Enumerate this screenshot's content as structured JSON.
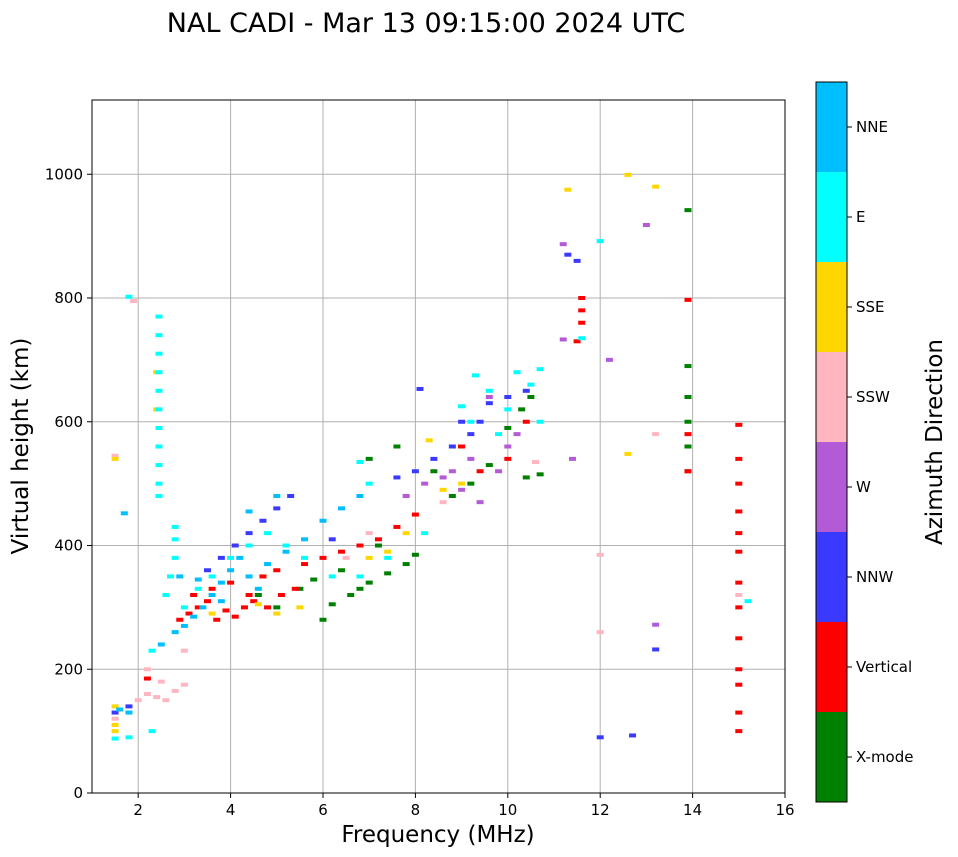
{
  "chart_data": {
    "type": "scatter",
    "title": "NAL CADI - Mar 13 09:15:00 2024 UTC",
    "xlabel": "Frequency (MHz)",
    "ylabel": "Virtual height (km)",
    "xlim": [
      1,
      16
    ],
    "ylim": [
      0,
      1120
    ],
    "xticks": [
      2,
      4,
      6,
      8,
      10,
      12,
      14,
      16
    ],
    "yticks": [
      0,
      200,
      400,
      600,
      800,
      1000
    ],
    "grid": true,
    "colorbar": {
      "label": "Azimuth Direction",
      "categories": [
        "X-mode",
        "Vertical",
        "NNW",
        "W",
        "SSW",
        "SSE",
        "E",
        "NNE"
      ],
      "colors": [
        "#008000",
        "#ff0000",
        "#3a3aff",
        "#b35bd6",
        "#ffb6c1",
        "#ffd700",
        "#00ffff",
        "#00bfff"
      ]
    },
    "series": [
      {
        "name": "X-mode",
        "points": [
          [
            6.2,
            305
          ],
          [
            6.6,
            320
          ],
          [
            7.0,
            340
          ],
          [
            7.4,
            355
          ],
          [
            7.8,
            370
          ],
          [
            8.0,
            385
          ],
          [
            5.5,
            330
          ],
          [
            5.8,
            345
          ],
          [
            6.4,
            360
          ],
          [
            7.2,
            400
          ],
          [
            8.8,
            480
          ],
          [
            9.2,
            500
          ],
          [
            9.6,
            530
          ],
          [
            10.0,
            590
          ],
          [
            10.3,
            620
          ],
          [
            10.5,
            640
          ],
          [
            10.4,
            510
          ],
          [
            10.7,
            515
          ],
          [
            13.9,
            520
          ],
          [
            13.9,
            560
          ],
          [
            13.9,
            600
          ],
          [
            13.9,
            640
          ],
          [
            13.9,
            690
          ],
          [
            13.9,
            942
          ],
          [
            7.0,
            540
          ],
          [
            7.6,
            560
          ],
          [
            8.4,
            520
          ],
          [
            9.0,
            560
          ],
          [
            4.6,
            320
          ],
          [
            5.0,
            300
          ],
          [
            6.0,
            280
          ],
          [
            6.8,
            330
          ]
        ]
      },
      {
        "name": "Vertical",
        "points": [
          [
            2.9,
            280
          ],
          [
            3.1,
            290
          ],
          [
            3.3,
            300
          ],
          [
            3.5,
            310
          ],
          [
            3.7,
            280
          ],
          [
            3.9,
            295
          ],
          [
            4.1,
            285
          ],
          [
            4.3,
            300
          ],
          [
            4.5,
            310
          ],
          [
            4.8,
            300
          ],
          [
            5.1,
            320
          ],
          [
            5.4,
            330
          ],
          [
            3.2,
            320
          ],
          [
            3.6,
            330
          ],
          [
            4.0,
            340
          ],
          [
            4.4,
            320
          ],
          [
            4.7,
            350
          ],
          [
            5.0,
            360
          ],
          [
            5.6,
            370
          ],
          [
            6.0,
            380
          ],
          [
            6.4,
            390
          ],
          [
            6.8,
            400
          ],
          [
            7.2,
            410
          ],
          [
            7.6,
            430
          ],
          [
            8.0,
            450
          ],
          [
            11.6,
            800
          ],
          [
            11.6,
            780
          ],
          [
            11.6,
            760
          ],
          [
            11.5,
            730
          ],
          [
            13.9,
            797
          ],
          [
            13.9,
            520
          ],
          [
            13.9,
            580
          ],
          [
            15.0,
            595
          ],
          [
            15.0,
            540
          ],
          [
            15.0,
            500
          ],
          [
            15.0,
            455
          ],
          [
            15.0,
            420
          ],
          [
            15.0,
            390
          ],
          [
            15.0,
            340
          ],
          [
            15.0,
            300
          ],
          [
            15.0,
            250
          ],
          [
            15.0,
            200
          ],
          [
            15.0,
            175
          ],
          [
            15.0,
            130
          ],
          [
            15.0,
            100
          ],
          [
            2.2,
            185
          ],
          [
            9.0,
            560
          ],
          [
            9.4,
            520
          ],
          [
            10.0,
            540
          ],
          [
            10.4,
            600
          ]
        ]
      },
      {
        "name": "NNW",
        "points": [
          [
            3.5,
            360
          ],
          [
            3.8,
            380
          ],
          [
            4.1,
            400
          ],
          [
            4.4,
            420
          ],
          [
            4.7,
            440
          ],
          [
            5.0,
            460
          ],
          [
            5.3,
            480
          ],
          [
            7.6,
            510
          ],
          [
            8.0,
            520
          ],
          [
            8.4,
            540
          ],
          [
            8.8,
            560
          ],
          [
            9.2,
            580
          ],
          [
            9.4,
            600
          ],
          [
            9.6,
            630
          ],
          [
            10.0,
            640
          ],
          [
            10.4,
            650
          ],
          [
            11.3,
            870
          ],
          [
            11.5,
            860
          ],
          [
            12.0,
            90
          ],
          [
            12.7,
            93
          ],
          [
            13.2,
            232
          ],
          [
            8.1,
            653
          ],
          [
            9.0,
            600
          ],
          [
            6.2,
            410
          ],
          [
            1.5,
            130
          ],
          [
            1.8,
            140
          ]
        ]
      },
      {
        "name": "W",
        "points": [
          [
            7.8,
            480
          ],
          [
            8.2,
            500
          ],
          [
            8.6,
            510
          ],
          [
            9.0,
            490
          ],
          [
            9.4,
            470
          ],
          [
            9.8,
            520
          ],
          [
            10.0,
            560
          ],
          [
            9.2,
            540
          ],
          [
            8.8,
            520
          ],
          [
            11.2,
            887
          ],
          [
            11.2,
            733
          ],
          [
            13.0,
            918
          ],
          [
            12.2,
            700
          ],
          [
            11.4,
            540
          ],
          [
            13.2,
            272
          ],
          [
            9.6,
            640
          ],
          [
            10.2,
            580
          ]
        ]
      },
      {
        "name": "SSW",
        "points": [
          [
            2.2,
            160
          ],
          [
            2.4,
            155
          ],
          [
            2.6,
            150
          ],
          [
            2.8,
            165
          ],
          [
            3.0,
            175
          ],
          [
            2.0,
            150
          ],
          [
            2.2,
            200
          ],
          [
            2.5,
            180
          ],
          [
            1.5,
            120
          ],
          [
            3.0,
            230
          ],
          [
            12.0,
            260
          ],
          [
            12.0,
            385
          ],
          [
            13.2,
            580
          ],
          [
            1.5,
            545
          ],
          [
            6.5,
            380
          ],
          [
            7.0,
            420
          ],
          [
            8.6,
            470
          ],
          [
            10.6,
            535
          ],
          [
            15.0,
            320
          ],
          [
            1.9,
            795
          ]
        ]
      },
      {
        "name": "SSE",
        "points": [
          [
            1.5,
            100
          ],
          [
            1.5,
            110
          ],
          [
            1.5,
            140
          ],
          [
            2.4,
            620
          ],
          [
            2.4,
            680
          ],
          [
            3.6,
            290
          ],
          [
            4.6,
            305
          ],
          [
            5.0,
            290
          ],
          [
            5.5,
            300
          ],
          [
            7.0,
            380
          ],
          [
            7.4,
            390
          ],
          [
            7.8,
            420
          ],
          [
            8.6,
            490
          ],
          [
            9.0,
            500
          ],
          [
            12.6,
            548
          ],
          [
            11.3,
            975
          ],
          [
            12.6,
            999
          ],
          [
            13.2,
            980
          ],
          [
            1.5,
            540
          ],
          [
            8.3,
            570
          ]
        ]
      },
      {
        "name": "E",
        "points": [
          [
            2.45,
            480
          ],
          [
            2.45,
            500
          ],
          [
            2.45,
            530
          ],
          [
            2.45,
            560
          ],
          [
            2.45,
            590
          ],
          [
            2.45,
            620
          ],
          [
            2.45,
            650
          ],
          [
            2.45,
            680
          ],
          [
            2.45,
            710
          ],
          [
            2.45,
            740
          ],
          [
            2.45,
            770
          ],
          [
            2.8,
            430
          ],
          [
            2.8,
            410
          ],
          [
            2.8,
            380
          ],
          [
            2.7,
            350
          ],
          [
            2.6,
            320
          ],
          [
            3.0,
            300
          ],
          [
            3.3,
            330
          ],
          [
            3.6,
            350
          ],
          [
            4.0,
            380
          ],
          [
            4.4,
            400
          ],
          [
            4.8,
            420
          ],
          [
            5.2,
            400
          ],
          [
            5.6,
            380
          ],
          [
            6.2,
            350
          ],
          [
            6.8,
            350
          ],
          [
            7.4,
            380
          ],
          [
            8.2,
            420
          ],
          [
            9.2,
            600
          ],
          [
            9.6,
            650
          ],
          [
            9.3,
            675
          ],
          [
            10.2,
            680
          ],
          [
            10.5,
            660
          ],
          [
            10.7,
            685
          ],
          [
            9.8,
            580
          ],
          [
            10.0,
            620
          ],
          [
            10.7,
            600
          ],
          [
            11.6,
            735
          ],
          [
            12.0,
            892
          ],
          [
            1.8,
            802
          ],
          [
            15.2,
            310
          ],
          [
            7.0,
            500
          ],
          [
            6.8,
            535
          ],
          [
            9.0,
            625
          ],
          [
            1.5,
            88
          ],
          [
            1.8,
            90
          ],
          [
            2.3,
            100
          ],
          [
            2.3,
            230
          ]
        ]
      },
      {
        "name": "NNE",
        "points": [
          [
            2.8,
            260
          ],
          [
            3.0,
            270
          ],
          [
            3.2,
            285
          ],
          [
            3.4,
            300
          ],
          [
            3.6,
            320
          ],
          [
            3.8,
            340
          ],
          [
            4.0,
            360
          ],
          [
            4.2,
            380
          ],
          [
            4.4,
            350
          ],
          [
            4.8,
            370
          ],
          [
            5.2,
            390
          ],
          [
            5.6,
            410
          ],
          [
            6.0,
            440
          ],
          [
            6.4,
            460
          ],
          [
            6.8,
            480
          ],
          [
            2.9,
            350
          ],
          [
            3.3,
            345
          ],
          [
            3.8,
            310
          ],
          [
            4.6,
            330
          ],
          [
            1.6,
            135
          ],
          [
            1.8,
            130
          ],
          [
            2.5,
            240
          ],
          [
            4.4,
            455
          ],
          [
            5.0,
            480
          ],
          [
            1.7,
            452
          ]
        ]
      }
    ]
  }
}
